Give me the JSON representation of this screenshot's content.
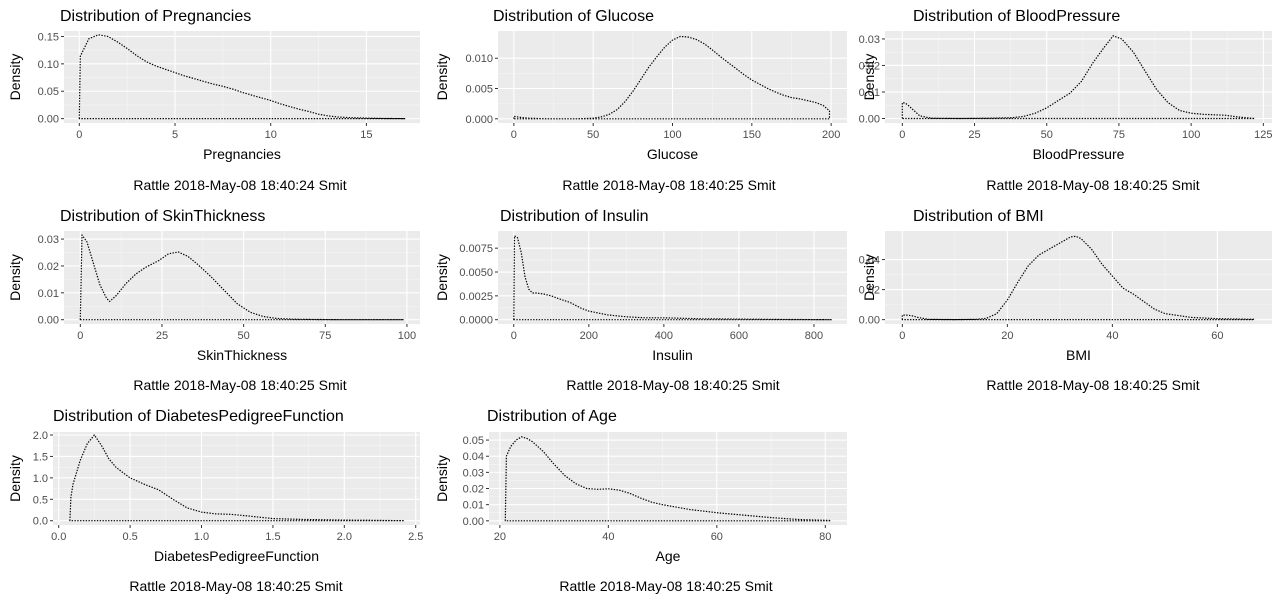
{
  "chart_data": [
    {
      "type": "area",
      "title": "Distribution of Pregnancies",
      "xlabel": "Pregnancies",
      "ylabel": "Density",
      "caption": "Rattle 2018-May-08 18:40:24 Smit",
      "xlim": [
        -0.8,
        17.8
      ],
      "ylim": [
        -0.008,
        0.16
      ],
      "xticks": [
        0,
        5,
        10,
        15
      ],
      "yticks": [
        0.0,
        0.05,
        0.1,
        0.15
      ],
      "yticklabels": [
        "0.00",
        "0.05",
        "0.10",
        "0.15"
      ],
      "grid": true,
      "series": [
        {
          "x": [
            0,
            0.05,
            0.5,
            1,
            1.5,
            2,
            2.5,
            3,
            3.5,
            4,
            4.5,
            5,
            5.5,
            6,
            6.5,
            7,
            7.5,
            8,
            8.5,
            9,
            9.5,
            10,
            10.5,
            11,
            11.5,
            12,
            12.5,
            13,
            13.5,
            14,
            15,
            16,
            17
          ],
          "y": [
            0,
            0.114,
            0.146,
            0.153,
            0.15,
            0.14,
            0.128,
            0.115,
            0.104,
            0.096,
            0.09,
            0.084,
            0.078,
            0.073,
            0.068,
            0.063,
            0.059,
            0.054,
            0.048,
            0.043,
            0.038,
            0.033,
            0.027,
            0.022,
            0.017,
            0.013,
            0.008,
            0.005,
            0.003,
            0.002,
            0.001,
            0.0003,
            0.0001
          ]
        }
      ]
    },
    {
      "type": "area",
      "title": "Distribution of Glucose",
      "xlabel": "Glucose",
      "ylabel": "Density",
      "caption": "Rattle 2018-May-08 18:40:25 Smit",
      "xlim": [
        -10,
        210
      ],
      "ylim": [
        -0.0007,
        0.0145
      ],
      "xticks": [
        0,
        50,
        100,
        150,
        200
      ],
      "yticks": [
        0.0,
        0.005,
        0.01
      ],
      "yticklabels": [
        "0.000",
        "0.005",
        "0.010"
      ],
      "grid": true,
      "series": [
        {
          "x": [
            0,
            5,
            10,
            20,
            30,
            40,
            50,
            55,
            60,
            65,
            70,
            75,
            80,
            85,
            90,
            95,
            100,
            105,
            110,
            115,
            120,
            125,
            130,
            135,
            140,
            145,
            150,
            155,
            160,
            165,
            170,
            175,
            180,
            185,
            190,
            195,
            199
          ],
          "y": [
            0.0004,
            0.0002,
            0.0001,
            0.0,
            0.0,
            0.0,
            0.0001,
            0.0003,
            0.0007,
            0.0015,
            0.0028,
            0.0045,
            0.0065,
            0.0085,
            0.0102,
            0.0118,
            0.013,
            0.0136,
            0.0135,
            0.0131,
            0.0124,
            0.0114,
            0.0103,
            0.0093,
            0.0083,
            0.0073,
            0.0064,
            0.0057,
            0.005,
            0.0044,
            0.0039,
            0.0035,
            0.0033,
            0.003,
            0.0027,
            0.0022,
            0.0013
          ]
        }
      ]
    },
    {
      "type": "area",
      "title": "Distribution of BloodPressure",
      "xlabel": "BloodPressure",
      "ylabel": "Density",
      "caption": "Rattle 2018-May-08 18:40:25 Smit",
      "xlim": [
        -6,
        128
      ],
      "ylim": [
        -0.0017,
        0.033
      ],
      "xticks": [
        0,
        25,
        50,
        75,
        100,
        125
      ],
      "yticks": [
        0.0,
        0.01,
        0.02,
        0.03
      ],
      "yticklabels": [
        "0.00",
        "0.01",
        "0.02",
        "0.03"
      ],
      "grid": true,
      "series": [
        {
          "x": [
            0,
            1,
            2,
            4,
            6,
            10,
            20,
            30,
            38,
            42,
            46,
            50,
            54,
            58,
            62,
            66,
            70,
            73,
            76,
            80,
            84,
            88,
            92,
            96,
            100,
            104,
            108,
            112,
            116,
            122
          ],
          "y": [
            0.006,
            0.0058,
            0.005,
            0.003,
            0.001,
            0.0001,
            0.0,
            0.0001,
            0.0003,
            0.0008,
            0.002,
            0.004,
            0.0068,
            0.0095,
            0.014,
            0.021,
            0.027,
            0.0312,
            0.03,
            0.025,
            0.018,
            0.011,
            0.006,
            0.003,
            0.002,
            0.0016,
            0.0014,
            0.0012,
            0.0006,
            0.0
          ]
        }
      ]
    },
    {
      "type": "area",
      "title": "Distribution of SkinThickness",
      "xlabel": "SkinThickness",
      "ylabel": "Density",
      "caption": "Rattle 2018-May-08 18:40:25 Smit",
      "xlim": [
        -5,
        104
      ],
      "ylim": [
        -0.0016,
        0.033
      ],
      "xticks": [
        0,
        25,
        50,
        75,
        100
      ],
      "yticks": [
        0.0,
        0.01,
        0.02,
        0.03
      ],
      "yticklabels": [
        "0.00",
        "0.01",
        "0.02",
        "0.03"
      ],
      "grid": true,
      "series": [
        {
          "x": [
            0,
            0.5,
            2,
            4,
            6,
            8,
            9,
            11,
            14,
            17,
            20,
            24,
            27,
            30,
            33,
            36,
            40,
            44,
            48,
            52,
            56,
            60,
            65,
            70,
            80,
            90,
            99
          ],
          "y": [
            0,
            0.0315,
            0.029,
            0.021,
            0.013,
            0.008,
            0.0068,
            0.009,
            0.0135,
            0.017,
            0.0195,
            0.022,
            0.0245,
            0.0252,
            0.0235,
            0.0205,
            0.016,
            0.011,
            0.006,
            0.0028,
            0.0012,
            0.0005,
            0.0002,
            0.0001,
            0.0,
            0.0,
            0.0
          ]
        }
      ]
    },
    {
      "type": "area",
      "title": "Distribution of Insulin",
      "xlabel": "Insulin",
      "ylabel": "Density",
      "caption": "Rattle 2018-May-08 18:40:25 Smit",
      "xlim": [
        -42,
        888
      ],
      "ylim": [
        -0.00045,
        0.0093
      ],
      "xticks": [
        0,
        200,
        400,
        600,
        800
      ],
      "yticks": [
        0.0,
        0.0025,
        0.005,
        0.0075
      ],
      "yticklabels": [
        "0.0000",
        "0.0025",
        "0.0050",
        "0.0075"
      ],
      "grid": true,
      "series": [
        {
          "x": [
            0,
            2,
            10,
            20,
            30,
            40,
            50,
            60,
            80,
            100,
            120,
            150,
            180,
            200,
            250,
            300,
            350,
            400,
            450,
            500,
            550,
            600,
            700,
            800,
            846
          ],
          "y": [
            0,
            0.0088,
            0.0086,
            0.007,
            0.0045,
            0.0032,
            0.0028,
            0.0028,
            0.0027,
            0.0025,
            0.0022,
            0.0018,
            0.0012,
            0.0009,
            0.0005,
            0.0003,
            0.0002,
            0.0002,
            0.00015,
            0.0001,
            8e-05,
            6e-05,
            3e-05,
            1e-05,
            0.0
          ]
        }
      ]
    },
    {
      "type": "area",
      "title": "Distribution of BMI",
      "xlabel": "BMI",
      "ylabel": "Density",
      "caption": "Rattle 2018-May-08 18:40:25 Smit",
      "xlim": [
        -3.3,
        70.4
      ],
      "ylim": [
        -0.0029,
        0.059
      ],
      "xticks": [
        0,
        20,
        40,
        60
      ],
      "yticks": [
        0.0,
        0.02,
        0.04
      ],
      "yticklabels": [
        "0.00",
        "0.02",
        "0.04"
      ],
      "grid": true,
      "series": [
        {
          "x": [
            0,
            1,
            2,
            3,
            5,
            10,
            14,
            16,
            18,
            20,
            22,
            24,
            26,
            28,
            30,
            32,
            33,
            34,
            36,
            38,
            40,
            42,
            44,
            46,
            48,
            50,
            55,
            60,
            67
          ],
          "y": [
            0.003,
            0.003,
            0.0024,
            0.0014,
            0.0002,
            0.0,
            0.0002,
            0.0008,
            0.004,
            0.013,
            0.025,
            0.036,
            0.043,
            0.047,
            0.051,
            0.055,
            0.0555,
            0.054,
            0.047,
            0.037,
            0.029,
            0.021,
            0.017,
            0.012,
            0.007,
            0.004,
            0.0015,
            0.0006,
            0.0002
          ]
        }
      ]
    },
    {
      "type": "area",
      "title": "Distribution of DiabetesPedigreeFunction",
      "xlabel": "DiabetesPedigreeFunction",
      "ylabel": "Density",
      "caption": "Rattle 2018-May-08 18:40:25 Smit",
      "xlim": [
        -0.04,
        2.53
      ],
      "ylim": [
        -0.1,
        2.07
      ],
      "xticks": [
        0.0,
        0.5,
        1.0,
        1.5,
        2.0,
        2.5
      ],
      "xticklabels": [
        "0.0",
        "0.5",
        "1.0",
        "1.5",
        "2.0",
        "2.5"
      ],
      "yticks": [
        0.0,
        0.5,
        1.0,
        1.5,
        2.0
      ],
      "yticklabels": [
        "0.0",
        "0.5",
        "1.0",
        "1.5",
        "2.0"
      ],
      "grid": true,
      "series": [
        {
          "x": [
            0.078,
            0.085,
            0.1,
            0.15,
            0.2,
            0.25,
            0.3,
            0.35,
            0.4,
            0.45,
            0.5,
            0.6,
            0.7,
            0.8,
            0.9,
            1.0,
            1.1,
            1.2,
            1.3,
            1.5,
            1.7,
            2.0,
            2.2,
            2.42
          ],
          "y": [
            0,
            0.55,
            0.85,
            1.4,
            1.8,
            2.0,
            1.75,
            1.45,
            1.25,
            1.12,
            1.0,
            0.85,
            0.72,
            0.5,
            0.3,
            0.2,
            0.16,
            0.15,
            0.12,
            0.05,
            0.03,
            0.015,
            0.01,
            0.0
          ]
        }
      ]
    },
    {
      "type": "area",
      "title": "Distribution of Age",
      "xlabel": "Age",
      "ylabel": "Density",
      "caption": "Rattle 2018-May-08 18:40:25 Smit",
      "xlim": [
        18,
        84
      ],
      "ylim": [
        -0.0026,
        0.055
      ],
      "xticks": [
        20,
        40,
        60,
        80
      ],
      "yticks": [
        0.0,
        0.01,
        0.02,
        0.03,
        0.04,
        0.05
      ],
      "yticklabels": [
        "0.00",
        "0.01",
        "0.02",
        "0.03",
        "0.04",
        "0.05"
      ],
      "grid": true,
      "series": [
        {
          "x": [
            21,
            21.2,
            22,
            23,
            24,
            25,
            26,
            28,
            30,
            32,
            34,
            36,
            38,
            40,
            42,
            44,
            46,
            48,
            50,
            55,
            60,
            65,
            70,
            75,
            81
          ],
          "y": [
            0,
            0.04,
            0.046,
            0.05,
            0.052,
            0.051,
            0.049,
            0.043,
            0.035,
            0.028,
            0.023,
            0.02,
            0.0195,
            0.0198,
            0.019,
            0.017,
            0.014,
            0.0115,
            0.01,
            0.007,
            0.005,
            0.0035,
            0.002,
            0.0008,
            0.0002
          ]
        }
      ]
    }
  ]
}
